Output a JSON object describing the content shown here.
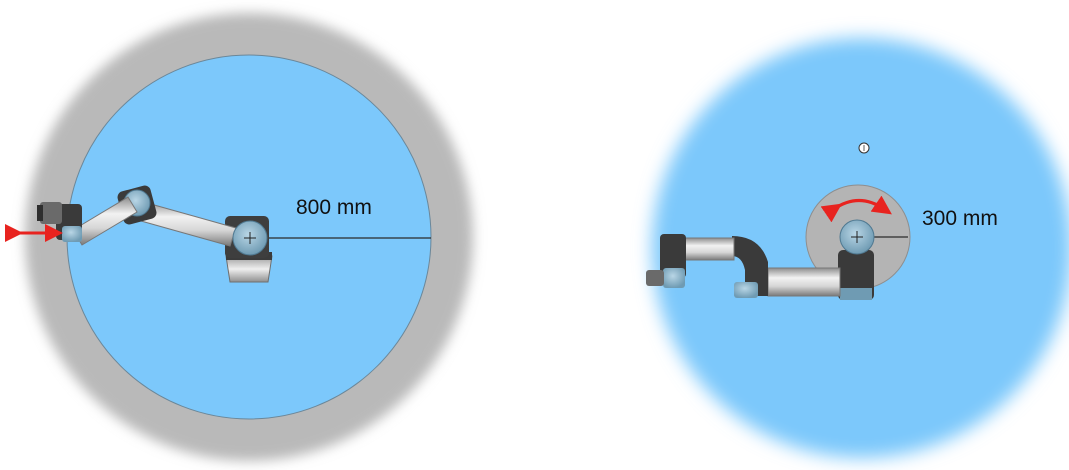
{
  "left_diagram": {
    "reach_label": "800 mm",
    "colors": {
      "outer_ring": "#b9b9b9",
      "workspace": "#7cc8fb",
      "arrow": "#e8231f"
    },
    "icons": [
      "robot-arm-icon",
      "linear-motion-arrow-icon",
      "radius-line"
    ]
  },
  "right_diagram": {
    "reach_label": "300 mm",
    "colors": {
      "workspace": "#7cc8fb",
      "inner_zone": "#b4b4b4",
      "arrow": "#e8231f"
    },
    "icons": [
      "robot-arm-icon",
      "rotation-arrow-icon",
      "cursor-icon",
      "radius-line"
    ]
  }
}
